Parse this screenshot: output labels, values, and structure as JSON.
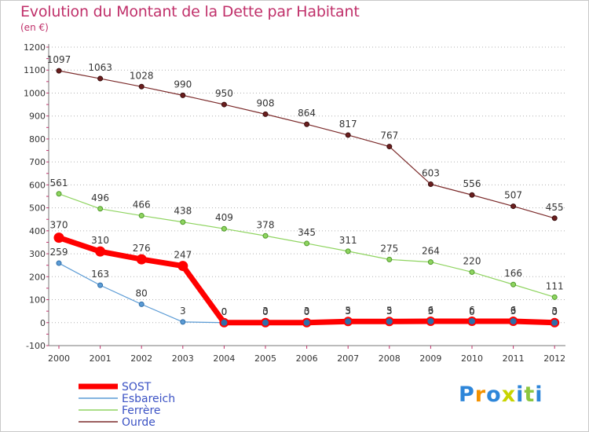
{
  "header": {
    "title": "Evolution du Montant de la Dette par Habitant",
    "unit": "(en €)"
  },
  "chart_data": {
    "type": "line",
    "title": "Evolution du Montant de la Dette par Habitant",
    "ylabel": "(en €)",
    "xlabel": "",
    "ylim": [
      -100,
      1200
    ],
    "yticks": [
      "-100",
      "0",
      "100",
      "200",
      "300",
      "400",
      "500",
      "600",
      "700",
      "800",
      "900",
      "1000",
      "1100",
      "1200"
    ],
    "x": [
      "2000",
      "2001",
      "2002",
      "2003",
      "2004",
      "2005",
      "2006",
      "2007",
      "2008",
      "2009",
      "2010",
      "2011",
      "2012"
    ],
    "grid": "horizontal dotted",
    "legend_position": "bottom-left",
    "series": [
      {
        "name": "SOST",
        "color": "#ff0000",
        "values": [
          370,
          310,
          276,
          247,
          0,
          0,
          0,
          5,
          5,
          6,
          6,
          6,
          0
        ]
      },
      {
        "name": "Esbareich",
        "color": "#5b9bd5",
        "values": [
          259,
          163,
          80,
          3,
          0,
          3,
          3,
          3,
          3,
          3,
          0,
          3,
          3
        ]
      },
      {
        "name": "Ferrère",
        "color": "#8fd460",
        "values": [
          561,
          496,
          466,
          438,
          409,
          378,
          345,
          311,
          275,
          264,
          220,
          166,
          111
        ]
      },
      {
        "name": "Ourde",
        "color": "#7b2a2a",
        "values": [
          1097,
          1063,
          1028,
          990,
          950,
          908,
          864,
          817,
          767,
          603,
          556,
          507,
          455
        ]
      }
    ]
  },
  "logo": {
    "letters": [
      "P",
      "r",
      "o",
      "x",
      "i",
      "t",
      "i"
    ],
    "colors": [
      "#2e86d9",
      "#f39200",
      "#2e86d9",
      "#c8d400",
      "#2e86d9",
      "#8cc63f",
      "#2e86d9"
    ]
  }
}
